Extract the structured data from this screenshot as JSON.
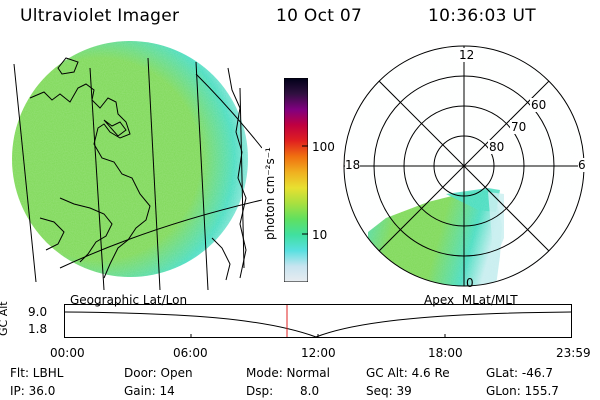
{
  "header": {
    "title": "Ultraviolet Imager",
    "date": "10 Oct 07",
    "time": "10:36:03 UT"
  },
  "colorbar": {
    "unit_label": "photon cm⁻²s⁻¹",
    "ticks": [
      "100",
      "10"
    ],
    "colors": [
      "#e8ecf0",
      "#c8e4f0",
      "#58e0e0",
      "#40e0a0",
      "#60e060",
      "#a8e040",
      "#e8e030",
      "#f0b020",
      "#f07010",
      "#e02020",
      "#c00040",
      "#800080",
      "#301040",
      "#000018"
    ]
  },
  "globe": {
    "caption": "Geographic Lat/Lon",
    "colors": {
      "main": "#7ed957",
      "edge": "#48ddc0",
      "outer": "#c8eef0"
    }
  },
  "polar": {
    "caption": "Apex  MLat/MLT",
    "hour_labels": {
      "top": "12",
      "left": "18",
      "right": "6",
      "bottom": "0"
    },
    "lat_labels": [
      "60",
      "70",
      "80"
    ]
  },
  "altitude_plot": {
    "ylabel": "GC Alt",
    "y_ticks": [
      "9.0",
      "1.8"
    ],
    "x_ticks": [
      "00:00",
      "06:00",
      "12:00",
      "18:00",
      "23:59"
    ],
    "current_time_color": "#e02020"
  },
  "status": {
    "flt": "Flt: LBHL",
    "ip": "IP: 36.0",
    "door": "Door: Open",
    "gain": "Gain: 14",
    "mode": "Mode: Normal",
    "dsp_label": "Dsp:",
    "dsp_value": "8.0",
    "gc_alt": "GC Alt: 4.6 Re",
    "seq": "Seq: 39",
    "glat": "GLat: -46.7",
    "glon": "GLon: 155.7"
  }
}
